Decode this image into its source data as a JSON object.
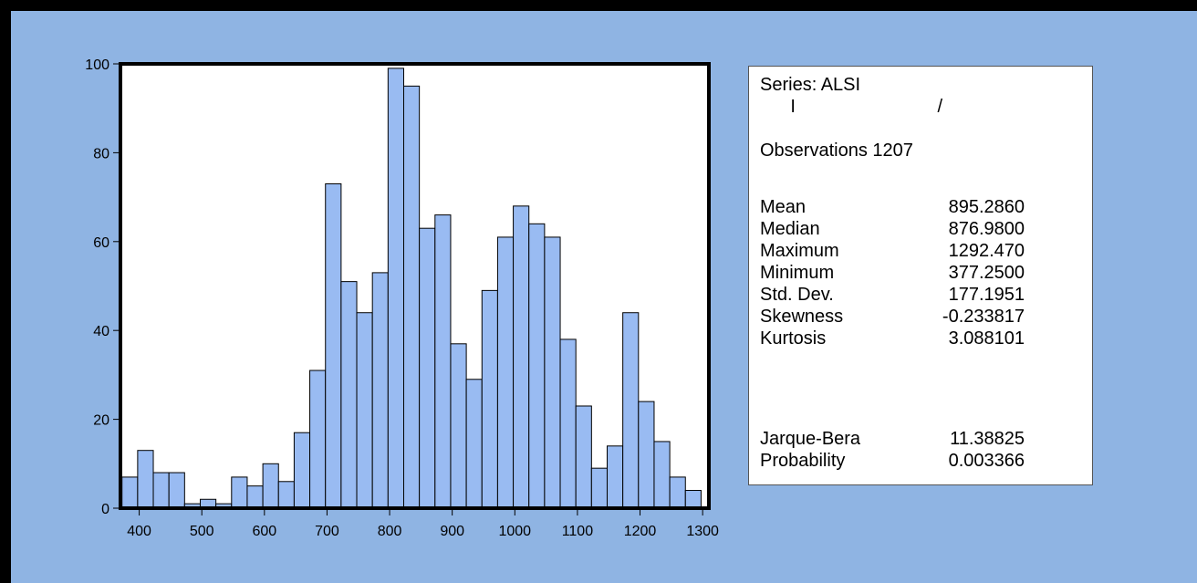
{
  "chart_data": {
    "type": "bar",
    "x": [
      385,
      410,
      435,
      460,
      485,
      510,
      535,
      560,
      585,
      610,
      635,
      660,
      685,
      710,
      735,
      760,
      785,
      810,
      835,
      860,
      885,
      910,
      935,
      960,
      985,
      1010,
      1035,
      1060,
      1085,
      1110,
      1135,
      1160,
      1185,
      1210,
      1235,
      1260,
      1285
    ],
    "values": [
      7,
      13,
      8,
      8,
      1,
      2,
      1,
      7,
      5,
      10,
      6,
      17,
      31,
      73,
      51,
      44,
      53,
      99,
      95,
      63,
      66,
      37,
      29,
      49,
      61,
      68,
      64,
      61,
      38,
      23,
      9,
      14,
      44,
      24,
      15,
      7,
      4
    ],
    "bin_width": 25,
    "xlim": [
      370,
      1310
    ],
    "ylim": [
      0,
      100
    ],
    "x_ticks": [
      400,
      500,
      600,
      700,
      800,
      900,
      1000,
      1100,
      1200,
      1300
    ],
    "y_ticks": [
      0,
      20,
      40,
      60,
      80,
      100
    ],
    "colors": {
      "bar_fill": "#99bbf2",
      "bar_stroke": "#000000",
      "background": "#8fb4e3"
    }
  },
  "stats": {
    "series_line": "Series: ALSI",
    "sample_line": "      I                            /",
    "observations_line": "Observations 1207",
    "rows": [
      {
        "label": "Mean",
        "value": "895.2860"
      },
      {
        "label": "Median",
        "value": "876.9800"
      },
      {
        "label": "Maximum",
        "value": "1292.470"
      },
      {
        "label": "Minimum",
        "value": "377.2500"
      },
      {
        "label": "Std. Dev.",
        "value": "177.1951"
      },
      {
        "label": "Skewness",
        "value": "-0.233817"
      },
      {
        "label": "Kurtosis",
        "value": "3.088101"
      }
    ],
    "test_rows": [
      {
        "label": "Jarque-Bera",
        "value": "11.38825"
      },
      {
        "label": "Probability",
        "value": "0.003366"
      }
    ]
  }
}
